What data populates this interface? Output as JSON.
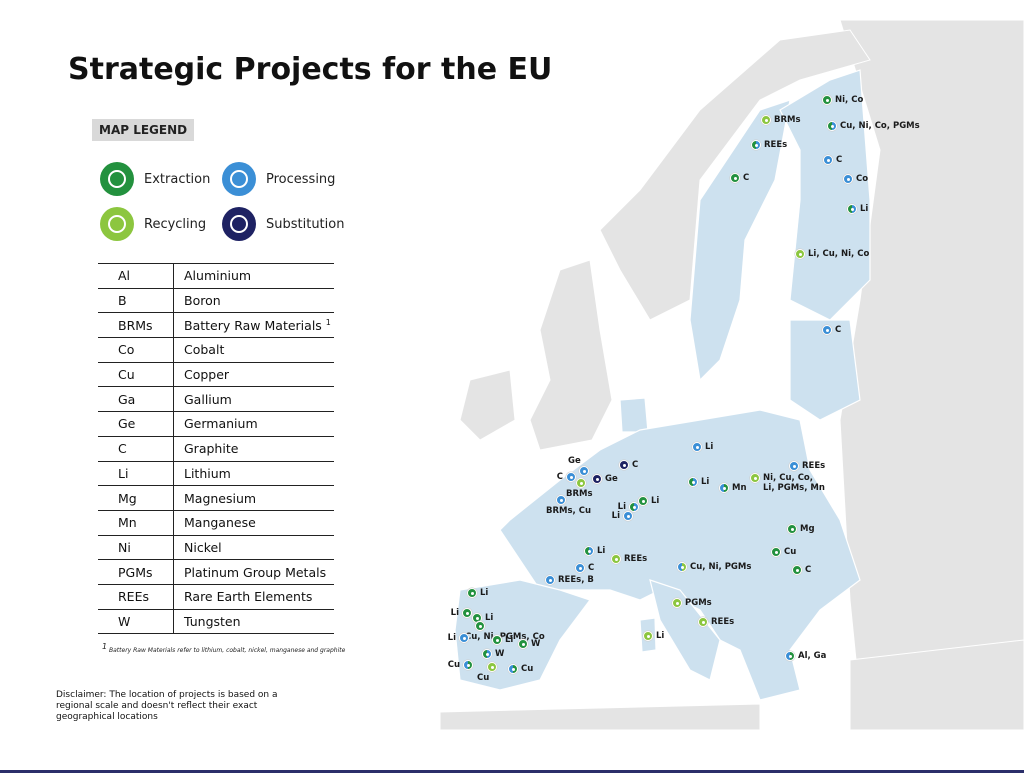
{
  "header": {
    "title": "Strategic Projects for the EU"
  },
  "legend": {
    "title": "MAP LEGEND",
    "items": [
      {
        "label": "Extraction",
        "color": "#23913e"
      },
      {
        "label": "Processing",
        "color": "#3b8fd6"
      },
      {
        "label": "Recycling",
        "color": "#8cc63f"
      },
      {
        "label": "Substitution",
        "color": "#1e2263"
      }
    ]
  },
  "table": {
    "rows": [
      {
        "code": "Al",
        "name": "Aluminium"
      },
      {
        "code": "B",
        "name": "Boron"
      },
      {
        "code": "BRMs",
        "name": "Battery Raw Materials",
        "note": "1"
      },
      {
        "code": "Co",
        "name": "Cobalt"
      },
      {
        "code": "Cu",
        "name": "Copper"
      },
      {
        "code": "Ga",
        "name": "Gallium"
      },
      {
        "code": "Ge",
        "name": "Germanium"
      },
      {
        "code": "C",
        "name": "Graphite"
      },
      {
        "code": "Li",
        "name": "Lithium"
      },
      {
        "code": "Mg",
        "name": "Magnesium"
      },
      {
        "code": "Mn",
        "name": "Manganese"
      },
      {
        "code": "Ni",
        "name": "Nickel"
      },
      {
        "code": "PGMs",
        "name": "Platinum Group Metals"
      },
      {
        "code": "REEs",
        "name": "Rare Earth Elements"
      },
      {
        "code": "W",
        "name": "Tungsten"
      }
    ]
  },
  "footnote": {
    "mark": "1",
    "text": "Battery Raw Materials refer to lithium, cobalt, nickel, manganese and graphite"
  },
  "disclaimer": "Disclaimer: The location of projects is based on a regional scale and doesn't reflect their exact geographical locations",
  "map": {
    "markers": [
      {
        "label": "Ni, Co",
        "colors": [
          "#23913e"
        ]
      },
      {
        "label": "BRMs",
        "colors": [
          "#8cc63f"
        ]
      },
      {
        "label": "Cu, Ni, Co, PGMs",
        "colors": [
          "#23913e",
          "#3b8fd6"
        ]
      },
      {
        "label": "REEs",
        "colors": [
          "#23913e",
          "#3b8fd6"
        ]
      },
      {
        "label": "C",
        "colors": [
          "#3b8fd6"
        ]
      },
      {
        "label": "C",
        "colors": [
          "#23913e"
        ]
      },
      {
        "label": "Co",
        "colors": [
          "#3b8fd6"
        ]
      },
      {
        "label": "Li",
        "colors": [
          "#23913e",
          "#3b8fd6"
        ]
      },
      {
        "label": "Li, Cu, Ni, Co",
        "colors": [
          "#8cc63f"
        ]
      },
      {
        "label": "C",
        "colors": [
          "#3b8fd6"
        ]
      },
      {
        "label": "Li",
        "colors": [
          "#3b8fd6"
        ]
      },
      {
        "label": "C",
        "colors": [
          "#1e2263"
        ]
      },
      {
        "label": "REEs",
        "colors": [
          "#3b8fd6"
        ]
      },
      {
        "label": "Ge",
        "colors": [
          "#3b8fd6"
        ]
      },
      {
        "label": "C",
        "colors": [
          "#3b8fd6"
        ]
      },
      {
        "label": "Ge",
        "colors": [
          "#1e2263"
        ]
      },
      {
        "label": "BRMs",
        "colors": [
          "#8cc63f"
        ]
      },
      {
        "label": "Li",
        "colors": [
          "#23913e",
          "#3b8fd6"
        ]
      },
      {
        "label": "Ni, Cu, Co, Li, PGMs, Mn",
        "colors": [
          "#8cc63f"
        ]
      },
      {
        "label": "Mn",
        "colors": [
          "#3b8fd6",
          "#23913e"
        ]
      },
      {
        "label": "BRMs, Cu",
        "colors": [
          "#3b8fd6"
        ]
      },
      {
        "label": "Li",
        "colors": [
          "#23913e"
        ]
      },
      {
        "label": "Li",
        "colors": [
          "#23913e",
          "#3b8fd6"
        ]
      },
      {
        "label": "Li",
        "colors": [
          "#3b8fd6"
        ]
      },
      {
        "label": "Mg",
        "colors": [
          "#23913e"
        ]
      },
      {
        "label": "Li",
        "colors": [
          "#23913e",
          "#3b8fd6"
        ]
      },
      {
        "label": "Cu",
        "colors": [
          "#23913e"
        ]
      },
      {
        "label": "REEs",
        "colors": [
          "#8cc63f"
        ]
      },
      {
        "label": "C",
        "colors": [
          "#3b8fd6"
        ]
      },
      {
        "label": "Cu, Ni, PGMs",
        "colors": [
          "#3b8fd6",
          "#8cc63f"
        ]
      },
      {
        "label": "C",
        "colors": [
          "#23913e"
        ]
      },
      {
        "label": "REEs, B",
        "colors": [
          "#3b8fd6"
        ]
      },
      {
        "label": "Li",
        "colors": [
          "#23913e"
        ]
      },
      {
        "label": "PGMs",
        "colors": [
          "#8cc63f"
        ]
      },
      {
        "label": "Li",
        "colors": [
          "#23913e"
        ]
      },
      {
        "label": "Li",
        "colors": [
          "#23913e"
        ]
      },
      {
        "label": "Cu, Ni, PGMs, Co",
        "colors": [
          "#23913e"
        ]
      },
      {
        "label": "REEs",
        "colors": [
          "#8cc63f"
        ]
      },
      {
        "label": "Li",
        "colors": [
          "#8cc63f"
        ]
      },
      {
        "label": "Li",
        "colors": [
          "#3b8fd6"
        ]
      },
      {
        "label": "Li",
        "colors": [
          "#23913e"
        ]
      },
      {
        "label": "W",
        "colors": [
          "#23913e"
        ]
      },
      {
        "label": "W",
        "colors": [
          "#23913e",
          "#3b8fd6"
        ]
      },
      {
        "label": "Al, Ga",
        "colors": [
          "#3b8fd6",
          "#23913e"
        ]
      },
      {
        "label": "Cu",
        "colors": [
          "#3b8fd6",
          "#23913e"
        ]
      },
      {
        "label": "Cu",
        "colors": [
          "#8cc63f"
        ]
      },
      {
        "label": "Cu",
        "colors": [
          "#3b8fd6",
          "#23913e"
        ]
      }
    ]
  }
}
